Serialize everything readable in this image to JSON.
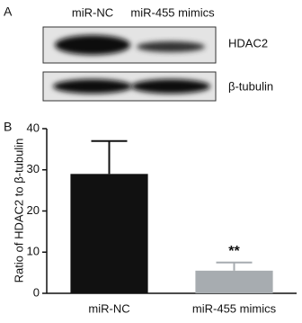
{
  "blot": {
    "panel": "A",
    "lanes": [
      "miR-NC",
      "miR-455 mimics"
    ],
    "bands": [
      "HDAC2",
      "β-tubulin"
    ]
  },
  "chart_data": {
    "type": "bar",
    "panel": "B",
    "ylabel": "Ratio of HDAC2 to β-tubulin",
    "categories": [
      "miR-NC",
      "miR-455 mimics"
    ],
    "values": [
      29,
      5.5
    ],
    "errors": [
      8,
      2
    ],
    "colors": [
      "#111111",
      "#a7acb0"
    ],
    "annotations": [
      {
        "category": 1,
        "text": "**"
      }
    ],
    "ylim": [
      0,
      40
    ],
    "yticks": [
      0,
      10,
      20,
      30,
      40
    ],
    "grid": false
  }
}
